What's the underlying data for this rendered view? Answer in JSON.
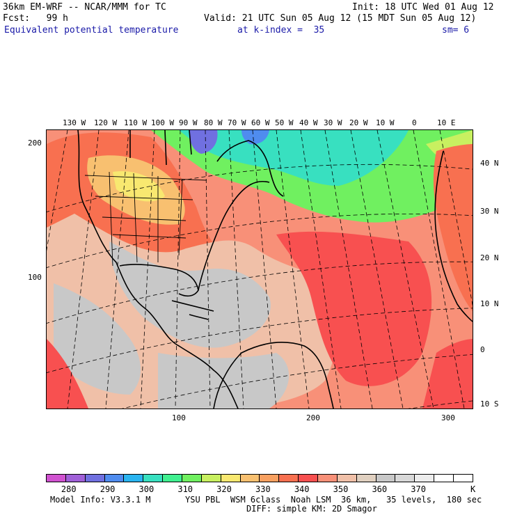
{
  "header": {
    "model_line": "36km EM-WRF -- NCAR/MMM for TC",
    "init_line": "Init: 18 UTC Wed 01 Aug 12",
    "fcst_line": "Fcst:   99 h",
    "valid_line": "Valid: 21 UTC Sun 05 Aug 12 (15 MDT Sun 05 Aug 12)",
    "field_name": "Equivalent potential temperature",
    "level_text": "at k-index =  35",
    "smooth_text": "sm= 6"
  },
  "map": {
    "longitude_labels": [
      "130 W",
      "120 W",
      "110 W",
      "100 W",
      "90 W",
      "80 W",
      "70 W",
      "60 W",
      "50 W",
      "40 W",
      "30 W",
      "20 W",
      "10 W",
      "0",
      "10 E"
    ],
    "latitude_labels": [
      "40 N",
      "30 N",
      "20 N",
      "10 N",
      "0",
      "10 S"
    ],
    "grid_x_labels": [
      "100",
      "200",
      "300"
    ],
    "grid_y_labels": [
      "200",
      "100"
    ]
  },
  "legend": {
    "colors": [
      "#d052d0",
      "#a060d8",
      "#7070e0",
      "#4f8cef",
      "#2ab4f0",
      "#38e0c0",
      "#40f090",
      "#70f060",
      "#c8f060",
      "#f8e870",
      "#f8c070",
      "#f8a060",
      "#f87050",
      "#f85050",
      "#f89078",
      "#f0c0a8",
      "#e0d0c0",
      "#c8c8c8",
      "#d8d8d8",
      "#ececec",
      "#ffffff",
      "#ffffff"
    ],
    "labels": [
      "280",
      "290",
      "300",
      "310",
      "320",
      "330",
      "340",
      "350",
      "360",
      "370",
      "K"
    ]
  },
  "footer": {
    "model_info": "Model Info: V3.3.1 M",
    "physics": "YSU PBL  WSM 6class  Noah LSM  36 km,   35 levels,  180 sec",
    "diffusion": "DIFF: simple KM: 2D Smagor"
  }
}
